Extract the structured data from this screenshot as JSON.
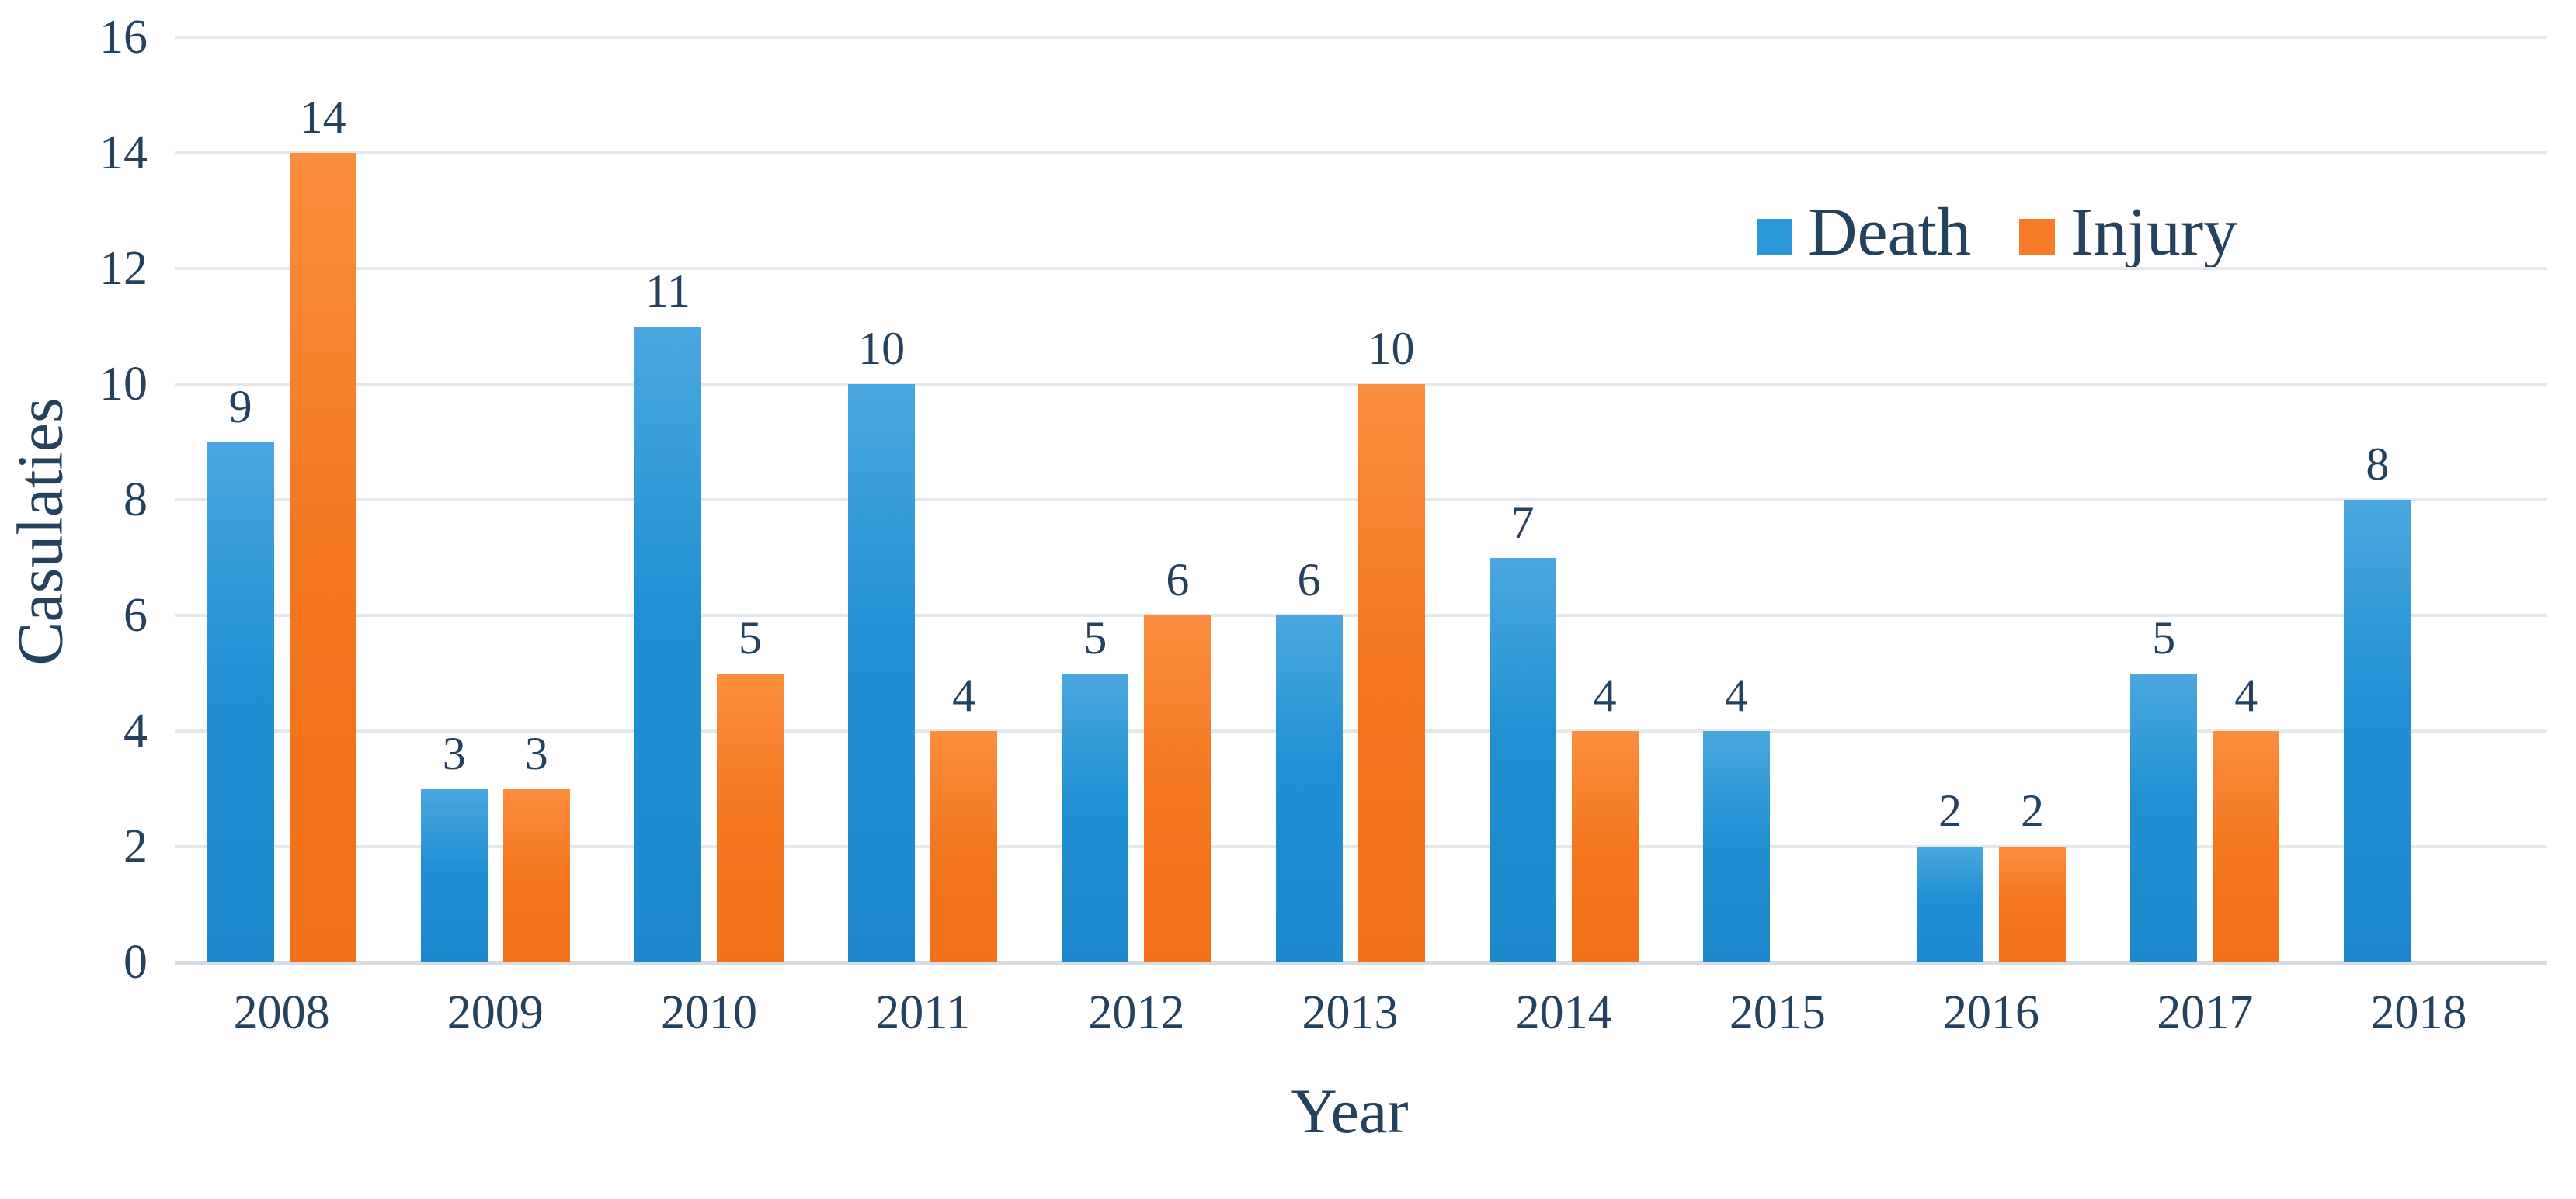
{
  "chart_data": {
    "type": "bar",
    "title": "",
    "categories": [
      "2008",
      "2009",
      "2010",
      "2011",
      "2012",
      "2013",
      "2014",
      "2015",
      "2016",
      "2017",
      "2018"
    ],
    "series": [
      {
        "name": "Death",
        "color": "#2b99d8",
        "values": [
          9,
          3,
          11,
          10,
          5,
          6,
          7,
          4,
          2,
          5,
          8
        ]
      },
      {
        "name": "Injury",
        "color": "#f87b27",
        "values": [
          14,
          3,
          5,
          4,
          6,
          10,
          4,
          null,
          2,
          4,
          null
        ]
      }
    ],
    "xlabel": "Year",
    "ylabel": "Casulaties",
    "ylim": [
      0,
      16
    ],
    "ytick_step": 2,
    "yticks": [
      0,
      2,
      4,
      6,
      8,
      10,
      12,
      14,
      16
    ],
    "grid": "horizontal",
    "legend_position": "top-right",
    "value_labels": true
  },
  "colors": {
    "background": "#ffffff",
    "text": "#24425e",
    "gridline": "#e4e8ec",
    "baseline": "#d7dce2"
  }
}
